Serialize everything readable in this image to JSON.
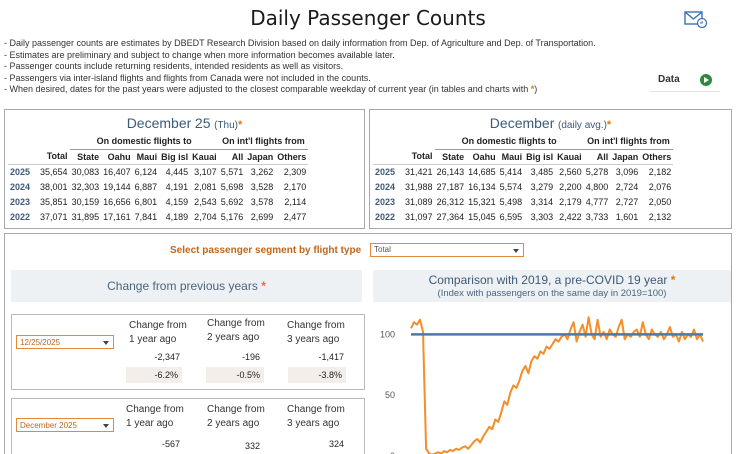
{
  "title": "Daily Passenger Counts",
  "notes": [
    "- Daily passenger counts are estimates by DBEDT Research Division based on daily information from Dep. of Agriculture and Dep. of Transportation.",
    "- Estimates are preliminary and subject to change when more information becomes available later.",
    "- Passenger counts include returning residents, intended residents as well as visitors.",
    "- Passengers via inter-island flights and flights from Canada were not included in the counts.",
    "- When desired, dates for the past years were adjusted to the closest comparable weekday of current year  (in tables and charts with "
  ],
  "notes_tail": ")",
  "data_button": "Data",
  "left_panel": {
    "title_month": "December",
    "title_day": "25",
    "title_weekday": "(Thu)",
    "group_domestic": "On domestic flights to",
    "group_intl": "On int'l flights from",
    "headers": [
      "Total",
      "State",
      "Oahu",
      "Maui",
      "Big isl",
      "Kauai",
      "All",
      "Japan",
      "Others"
    ],
    "rows": [
      {
        "year": "2025",
        "cells": [
          "35,654",
          "30,083",
          "16,407",
          "6,124",
          "4,445",
          "3,107",
          "5,571",
          "3,262",
          "2,309"
        ]
      },
      {
        "year": "2024",
        "cells": [
          "38,001",
          "32,303",
          "19,144",
          "6,887",
          "4,191",
          "2,081",
          "5,698",
          "3,528",
          "2,170"
        ]
      },
      {
        "year": "2023",
        "cells": [
          "35,851",
          "30,159",
          "16,656",
          "6,801",
          "4,159",
          "2,543",
          "5,692",
          "3,578",
          "2,114"
        ]
      },
      {
        "year": "2022",
        "cells": [
          "37,071",
          "31,895",
          "17,161",
          "7,841",
          "4,189",
          "2,704",
          "5,176",
          "2,699",
          "2,477"
        ]
      }
    ]
  },
  "right_panel": {
    "title_month": "December",
    "title_note": "(daily avg.)",
    "group_domestic": "On domestic flights to",
    "group_intl": "On int'l flights from",
    "headers": [
      "Total",
      "State",
      "Oahu",
      "Maui",
      "Big isl",
      "Kauai",
      "All",
      "Japan",
      "Others"
    ],
    "rows": [
      {
        "year": "2025",
        "cells": [
          "31,421",
          "26,143",
          "14,685",
          "5,414",
          "3,485",
          "2,560",
          "5,278",
          "3,096",
          "2,182"
        ]
      },
      {
        "year": "2024",
        "cells": [
          "31,988",
          "27,187",
          "16,134",
          "5,574",
          "3,279",
          "2,200",
          "4,800",
          "2,724",
          "2,076"
        ]
      },
      {
        "year": "2023",
        "cells": [
          "31,089",
          "26,312",
          "15,321",
          "5,498",
          "3,314",
          "2,179",
          "4,777",
          "2,727",
          "2,050"
        ]
      },
      {
        "year": "2022",
        "cells": [
          "31,097",
          "27,364",
          "15,045",
          "6,595",
          "3,303",
          "2,422",
          "3,733",
          "1,601",
          "2,132"
        ]
      }
    ]
  },
  "segment": {
    "label": "Select passenger segment by flight type",
    "value": "Total"
  },
  "change": {
    "title": "Change from previous years",
    "col_labels": [
      [
        "Change from",
        "1 year ago"
      ],
      [
        "Change from",
        "2 years ago"
      ],
      [
        "Change from",
        "3 years ago"
      ]
    ],
    "day": {
      "dropdown": "12/25/2025",
      "values": [
        "-2,347",
        "-196",
        "-1,417"
      ],
      "percents": [
        "-6.2%",
        "-0.5%",
        "-3.8%"
      ]
    },
    "month": {
      "dropdown": "December 2025",
      "values": [
        "-567",
        "332",
        "324"
      ]
    }
  },
  "comparison": {
    "title": "Comparison with 2019, a pre-COVID 19 year",
    "subtitle": "(Index with passengers on the same day in 2019=100)"
  },
  "star": "*",
  "colors": {
    "accent_orange": "#e07a00",
    "line_orange": "#f28e2b",
    "baseline_blue": "#4e79a7",
    "title_blue": "#3d5a78"
  },
  "icons": {
    "mail": "mail-share-icon",
    "data_go": "arrow-right-circle-icon"
  },
  "chart_data": {
    "type": "line",
    "title": "Comparison with 2019, a pre-COVID 19 year",
    "subtitle": "(Index with passengers on the same day in 2019=100)",
    "xlabel": "",
    "ylabel": "",
    "ylim": [
      0,
      120
    ],
    "yticks": [
      0,
      50,
      100
    ],
    "baseline": 100,
    "grid": false,
    "series": [
      {
        "values": [
          105,
          110,
          108,
          112,
          102,
          6,
          2,
          1,
          2,
          3,
          2,
          4,
          3,
          5,
          4,
          6,
          5,
          7,
          8,
          6,
          9,
          12,
          14,
          11,
          16,
          20,
          24,
          22,
          30,
          28,
          36,
          45,
          42,
          52,
          58,
          56,
          62,
          70,
          74,
          68,
          78,
          82,
          80,
          86,
          84,
          90,
          88,
          92,
          96,
          94,
          98,
          100,
          96,
          104,
          110,
          94,
          102,
          108,
          98,
          114,
          100,
          96,
          112,
          98,
          102,
          96,
          104,
          100,
          98,
          106,
          112,
          96,
          100,
          98,
          102,
          104,
          98,
          110,
          100,
          96,
          104,
          100,
          98,
          102,
          96,
          100,
          106,
          98,
          100,
          94,
          102,
          96,
          100,
          98,
          104,
          96,
          100,
          94
        ]
      }
    ]
  }
}
